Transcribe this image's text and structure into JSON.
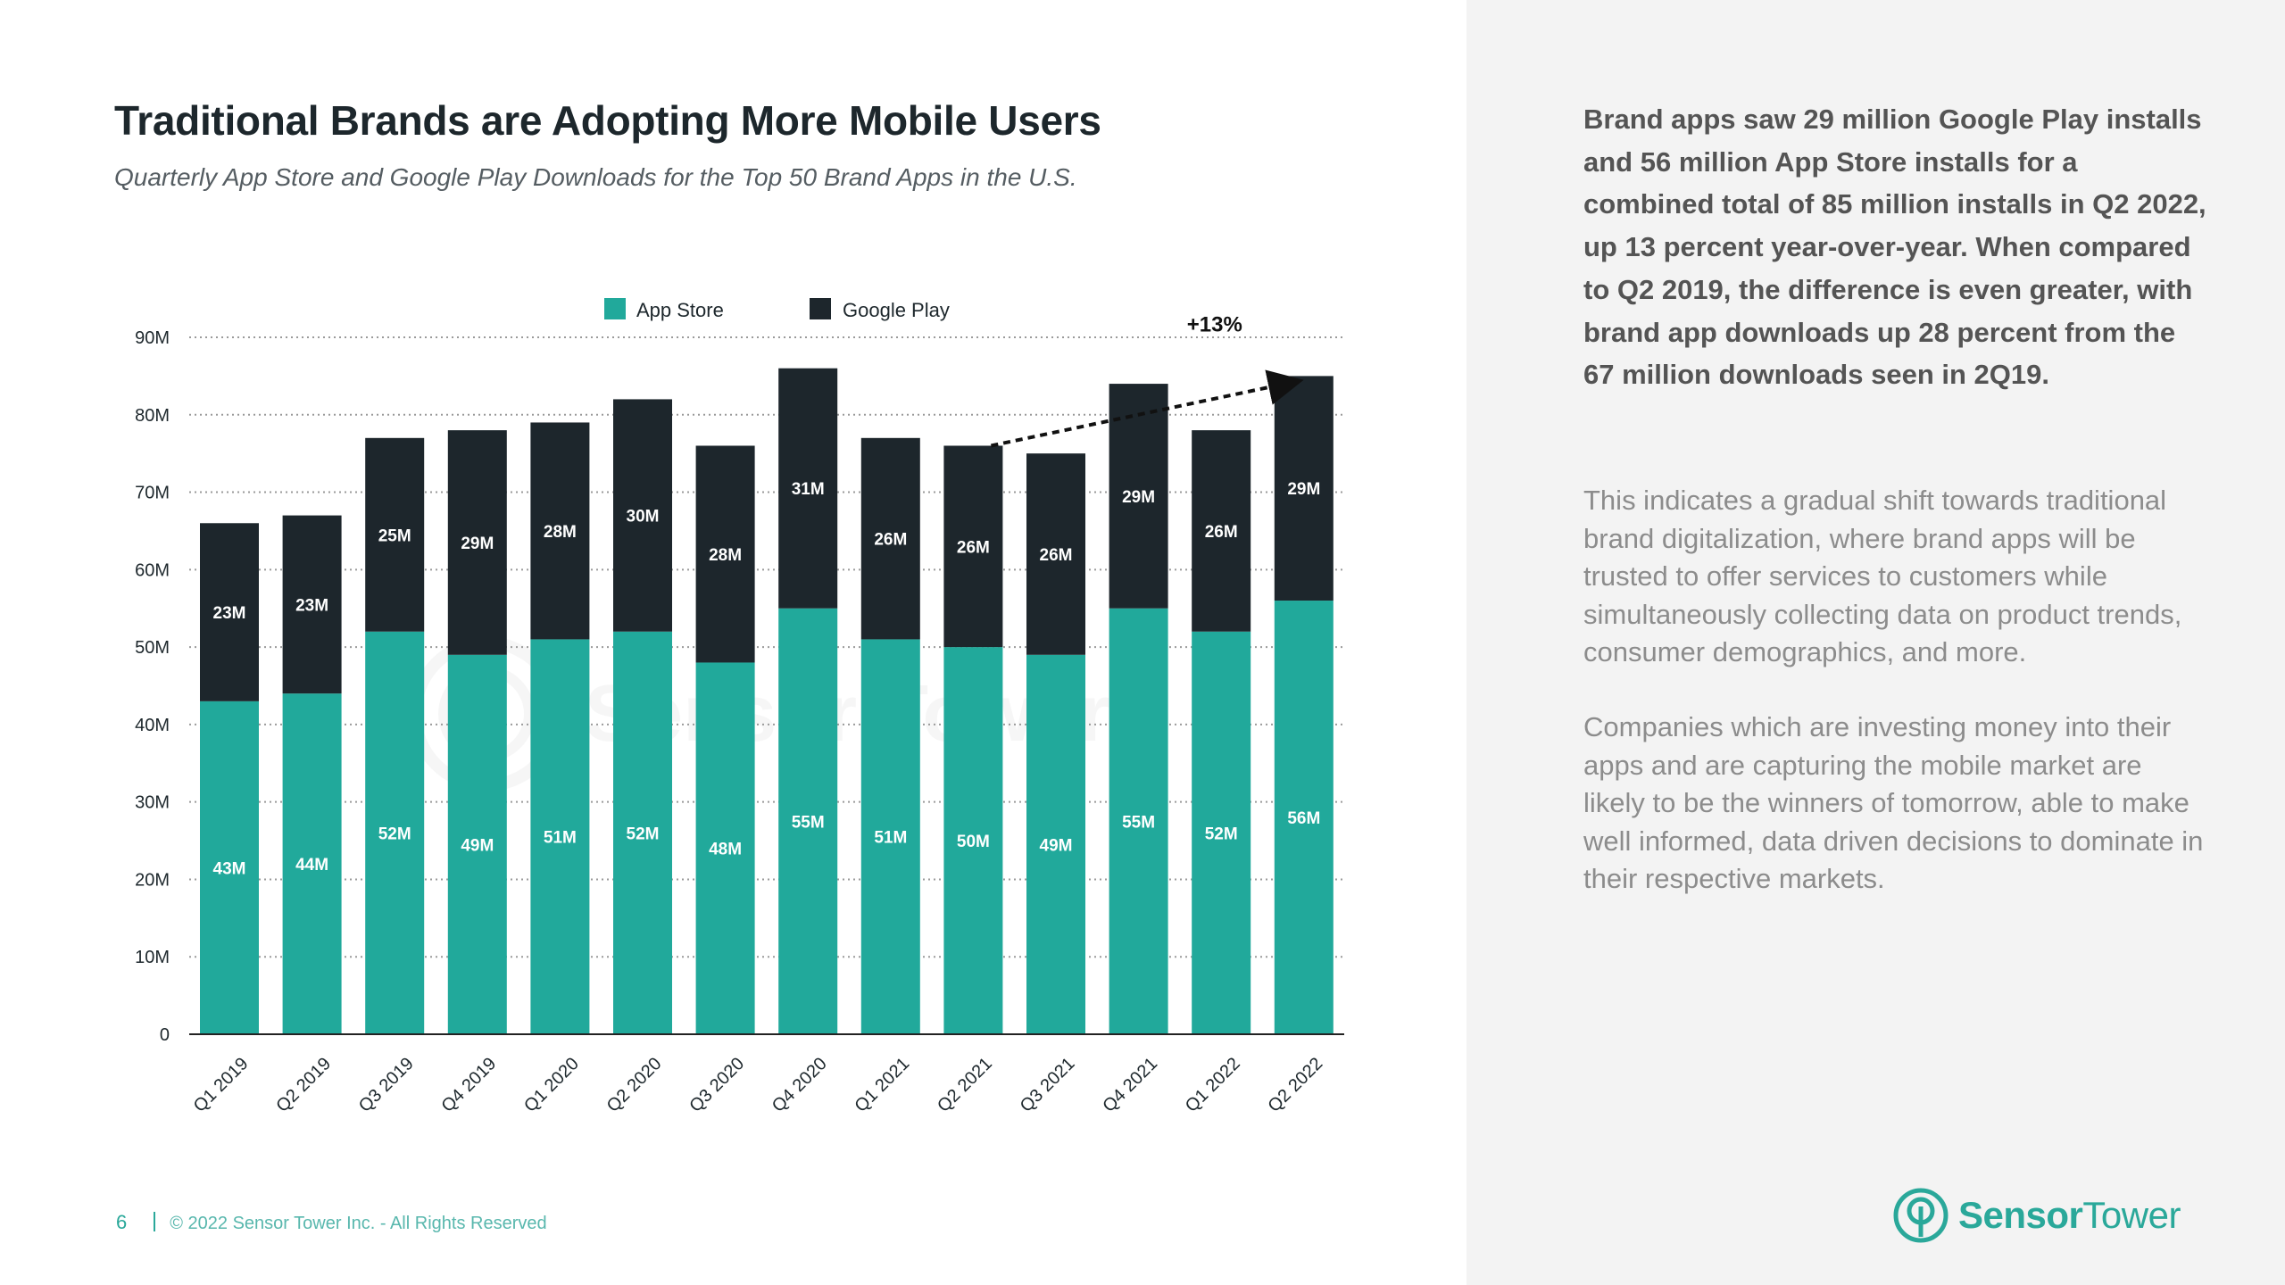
{
  "header": {
    "title": "Traditional Brands are Adopting More Mobile Users",
    "subtitle": "Quarterly App Store and Google Play Downloads for the Top 50 Brand Apps in the U.S."
  },
  "colors": {
    "app_store": "#21a99b",
    "google_play": "#1d262c",
    "accent": "#2aa89a"
  },
  "chart_data": {
    "type": "bar",
    "stacked": true,
    "categories": [
      "Q1 2019",
      "Q2 2019",
      "Q3 2019",
      "Q4 2019",
      "Q1 2020",
      "Q2 2020",
      "Q3 2020",
      "Q4 2020",
      "Q1 2021",
      "Q2 2021",
      "Q3 2021",
      "Q4 2021",
      "Q1 2022",
      "Q2 2022"
    ],
    "series": [
      {
        "name": "App Store",
        "values": [
          43,
          44,
          52,
          49,
          51,
          52,
          48,
          55,
          51,
          50,
          49,
          55,
          52,
          56
        ],
        "labels": [
          "43M",
          "44M",
          "52M",
          "49M",
          "51M",
          "52M",
          "48M",
          "55M",
          "51M",
          "50M",
          "49M",
          "55M",
          "52M",
          "56M"
        ]
      },
      {
        "name": "Google Play",
        "values": [
          23,
          23,
          25,
          29,
          28,
          30,
          28,
          31,
          26,
          26,
          26,
          29,
          26,
          29
        ],
        "labels": [
          "23M",
          "23M",
          "25M",
          "29M",
          "28M",
          "30M",
          "28M",
          "31M",
          "26M",
          "26M",
          "26M",
          "29M",
          "26M",
          "29M"
        ]
      }
    ],
    "ylim": [
      0,
      90
    ],
    "yticks": [
      0,
      10,
      20,
      30,
      40,
      50,
      60,
      70,
      80,
      90
    ],
    "ytick_labels": [
      "0",
      "10M",
      "20M",
      "30M",
      "40M",
      "50M",
      "60M",
      "70M",
      "80M",
      "90M"
    ],
    "legend": [
      "App Store",
      "Google Play"
    ],
    "legend_position": "top-center",
    "grid": true,
    "annotation": {
      "text": "+13%",
      "from": "Q2 2021",
      "to": "Q2 2022"
    },
    "xlabel": "",
    "ylabel": ""
  },
  "footer": {
    "page_number": "6",
    "copyright": "© 2022 Sensor Tower Inc. - All Rights Reserved"
  },
  "sidebar": {
    "paragraph1": "Brand apps saw 29 million Google Play installs and 56 million App Store installs for a combined total of 85 million installs in Q2 2022, up 13 percent year-over-year. When compared to Q2 2019, the difference is even greater, with brand app downloads up 28 percent from the 67 million downloads seen in 2Q19.",
    "paragraph2": "This indicates a gradual shift towards traditional brand digitalization, where brand apps will be trusted to offer services to customers while simultaneously collecting data on product trends, consumer demographics, and more.",
    "paragraph3": "Companies which are investing money into their apps and are capturing the mobile market are likely to be the winners of tomorrow, able to make well informed, data driven decisions to dominate in their respective markets."
  },
  "logo": {
    "word1": "Sensor",
    "word2": "Tower",
    "icon": "sensor-tower-logo-icon"
  }
}
